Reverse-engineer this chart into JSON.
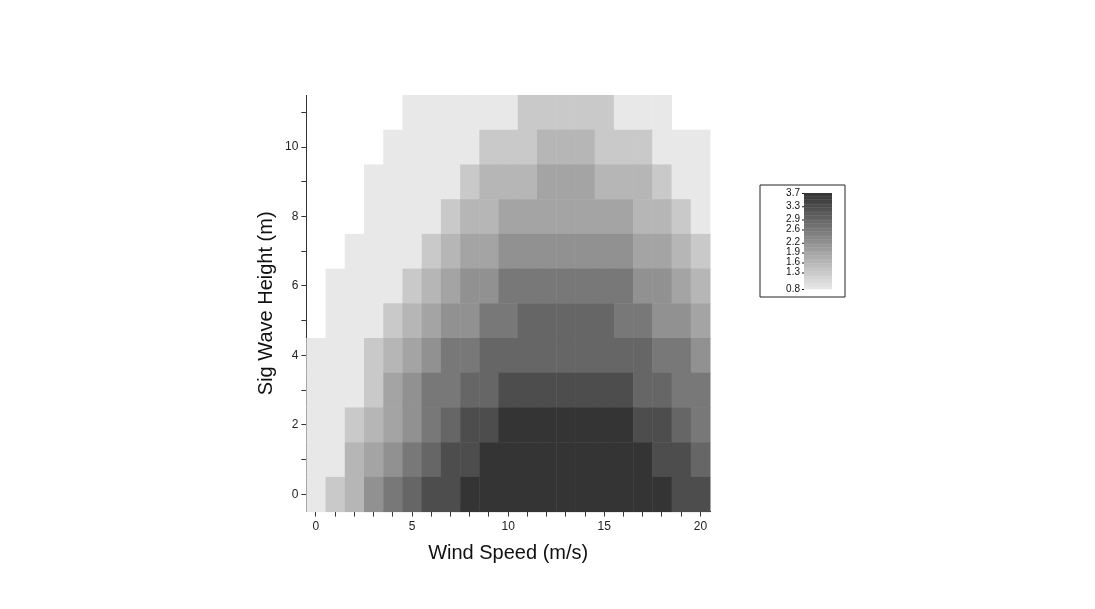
{
  "chart_data": {
    "type": "heatmap",
    "xlabel": "Wind Speed (m/s)",
    "ylabel": "Sig Wave Height (m)",
    "categories": [
      "0",
      null,
      null,
      null,
      null,
      "5",
      null,
      null,
      null,
      null,
      "10",
      null,
      null,
      null,
      null,
      "15",
      null,
      null,
      null,
      null,
      "20"
    ],
    "y_categories": [
      null,
      "10",
      null,
      "8",
      null,
      "6",
      null,
      "4",
      null,
      "2",
      null,
      "0"
    ],
    "cells": [
      [
        null,
        null,
        null,
        null,
        null,
        0.8,
        0.8,
        0.8,
        0.8,
        0.8,
        0.8,
        1.3,
        1.3,
        1.3,
        1.3,
        1.3,
        0.8,
        0.8,
        0.8,
        null,
        null
      ],
      [
        null,
        null,
        null,
        null,
        0.8,
        0.8,
        0.8,
        0.8,
        0.8,
        1.3,
        1.3,
        1.3,
        1.6,
        1.6,
        1.6,
        1.3,
        1.3,
        1.3,
        0.8,
        0.8,
        0.8
      ],
      [
        null,
        null,
        null,
        0.8,
        0.8,
        0.8,
        0.8,
        0.8,
        1.3,
        1.6,
        1.6,
        1.6,
        1.9,
        1.9,
        1.9,
        1.6,
        1.6,
        1.6,
        1.3,
        0.8,
        0.8
      ],
      [
        null,
        null,
        null,
        0.8,
        0.8,
        0.8,
        0.8,
        1.3,
        1.6,
        1.6,
        1.9,
        1.9,
        1.9,
        1.9,
        1.9,
        1.9,
        1.9,
        1.6,
        1.6,
        1.3,
        0.8
      ],
      [
        null,
        null,
        0.8,
        0.8,
        0.8,
        0.8,
        1.3,
        1.6,
        1.9,
        1.9,
        2.2,
        2.2,
        2.2,
        2.2,
        2.2,
        2.2,
        2.2,
        1.9,
        1.9,
        1.6,
        1.3
      ],
      [
        null,
        0.8,
        0.8,
        0.8,
        0.8,
        1.3,
        1.6,
        1.9,
        2.2,
        2.2,
        2.6,
        2.6,
        2.6,
        2.6,
        2.6,
        2.6,
        2.6,
        2.2,
        2.2,
        1.9,
        1.6
      ],
      [
        null,
        0.8,
        0.8,
        0.8,
        1.3,
        1.6,
        1.9,
        2.2,
        2.2,
        2.6,
        2.6,
        2.9,
        2.9,
        2.9,
        2.9,
        2.9,
        2.6,
        2.6,
        2.2,
        2.2,
        1.9
      ],
      [
        0.8,
        0.8,
        0.8,
        1.3,
        1.6,
        1.9,
        2.2,
        2.6,
        2.6,
        2.9,
        2.9,
        2.9,
        2.9,
        2.9,
        2.9,
        2.9,
        2.9,
        2.9,
        2.6,
        2.6,
        2.2
      ],
      [
        0.8,
        0.8,
        0.8,
        1.3,
        1.9,
        2.2,
        2.6,
        2.6,
        2.9,
        2.9,
        3.3,
        3.3,
        3.3,
        3.3,
        3.3,
        3.3,
        3.3,
        2.9,
        2.9,
        2.6,
        2.6
      ],
      [
        0.8,
        0.8,
        1.3,
        1.6,
        1.9,
        2.2,
        2.6,
        2.9,
        3.3,
        3.3,
        3.7,
        3.7,
        3.7,
        3.7,
        3.7,
        3.7,
        3.7,
        3.3,
        3.3,
        2.9,
        2.6
      ],
      [
        0.8,
        0.8,
        1.6,
        1.9,
        2.2,
        2.6,
        2.9,
        3.3,
        3.3,
        3.7,
        3.7,
        3.7,
        3.7,
        3.7,
        3.7,
        3.7,
        3.7,
        3.7,
        3.3,
        3.3,
        2.9
      ],
      [
        0.8,
        1.3,
        1.6,
        2.2,
        2.6,
        2.9,
        3.3,
        3.3,
        3.7,
        3.7,
        3.7,
        3.7,
        3.7,
        3.7,
        3.7,
        3.7,
        3.7,
        3.7,
        3.7,
        3.3,
        3.3
      ]
    ],
    "clim": [
      0.8,
      3.7
    ],
    "cticks": [
      0.8,
      1.3,
      1.6,
      1.9,
      2.2,
      2.6,
      2.9,
      3.3,
      3.7
    ]
  }
}
